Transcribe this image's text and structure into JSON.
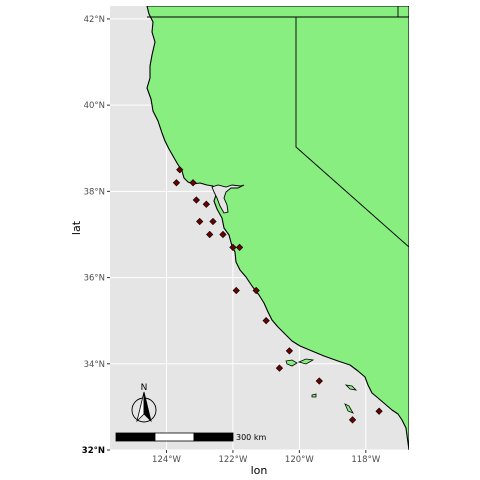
{
  "map": {
    "x_axis_label": "lon",
    "y_axis_label": "lat",
    "x_ticks": [
      {
        "value": -124,
        "label": "124°W"
      },
      {
        "value": -122,
        "label": "122°W"
      },
      {
        "value": -120,
        "label": "120°W"
      },
      {
        "value": -118,
        "label": "118°W"
      }
    ],
    "y_ticks": [
      {
        "value": 42,
        "label": "42°N"
      },
      {
        "value": 40,
        "label": "40°N"
      },
      {
        "value": 38,
        "label": "38°N"
      },
      {
        "value": 36,
        "label": "36°N"
      },
      {
        "value": 34,
        "label": "34°N"
      },
      {
        "value": 32,
        "label": "32°N"
      }
    ],
    "xlim": [
      -125.7,
      -116.7
    ],
    "ylim": [
      32,
      42.3
    ],
    "scale_bar_label": "300 km",
    "north_arrow_label": "N",
    "colors": {
      "panel_background": "#e5e5e5",
      "land": "#88ee80",
      "point_fill": "#6b0000",
      "grid": "#ffffff"
    },
    "points": [
      {
        "lon": -123.6,
        "lat": 38.5
      },
      {
        "lon": -123.7,
        "lat": 38.2
      },
      {
        "lon": -123.2,
        "lat": 38.2
      },
      {
        "lon": -123.1,
        "lat": 37.8
      },
      {
        "lon": -122.8,
        "lat": 37.7
      },
      {
        "lon": -122.6,
        "lat": 37.3
      },
      {
        "lon": -123.0,
        "lat": 37.3
      },
      {
        "lon": -122.7,
        "lat": 37.0
      },
      {
        "lon": -122.3,
        "lat": 37.0
      },
      {
        "lon": -122.0,
        "lat": 36.7
      },
      {
        "lon": -121.8,
        "lat": 36.7
      },
      {
        "lon": -121.9,
        "lat": 35.7
      },
      {
        "lon": -121.3,
        "lat": 35.7
      },
      {
        "lon": -121.0,
        "lat": 35.0
      },
      {
        "lon": -120.3,
        "lat": 34.3
      },
      {
        "lon": -120.6,
        "lat": 33.9
      },
      {
        "lon": -119.4,
        "lat": 33.6
      },
      {
        "lon": -118.4,
        "lat": 32.7
      },
      {
        "lon": -117.6,
        "lat": 32.9
      }
    ]
  }
}
